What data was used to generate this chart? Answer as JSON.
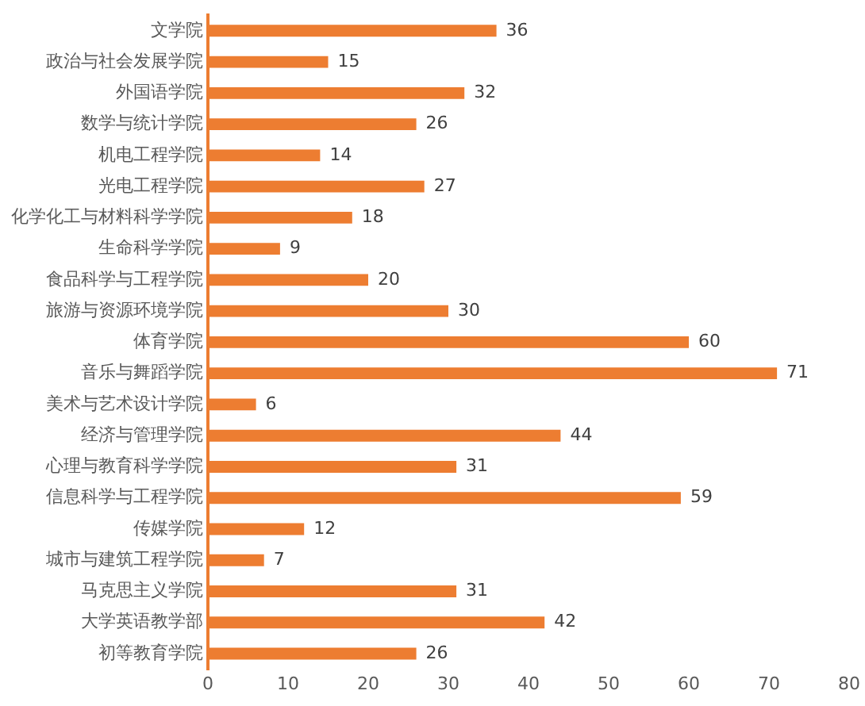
{
  "chart_data": {
    "type": "bar",
    "orientation": "horizontal",
    "categories": [
      "文学院",
      "政治与社会发展学院",
      "外国语学院",
      "数学与统计学院",
      "机电工程学院",
      "光电工程学院",
      "化学化工与材料科学学院",
      "生命科学学院",
      "食品科学与工程学院",
      "旅游与资源环境学院",
      "体育学院",
      "音乐与舞蹈学院",
      "美术与艺术设计学院",
      "经济与管理学院",
      "心理与教育科学学院",
      "信息科学与工程学院",
      "传媒学院",
      "城市与建筑工程学院",
      "马克思主义学院",
      "大学英语教学部",
      "初等教育学院"
    ],
    "values": [
      36,
      15,
      32,
      26,
      14,
      27,
      18,
      9,
      20,
      30,
      60,
      71,
      6,
      44,
      31,
      59,
      12,
      7,
      31,
      42,
      26
    ],
    "color": "#ed7d31",
    "xlim": [
      0,
      80
    ],
    "xticks": [
      0,
      10,
      20,
      30,
      40,
      50,
      60,
      70,
      80
    ],
    "grid": false,
    "legend": false,
    "data_labels": true
  }
}
